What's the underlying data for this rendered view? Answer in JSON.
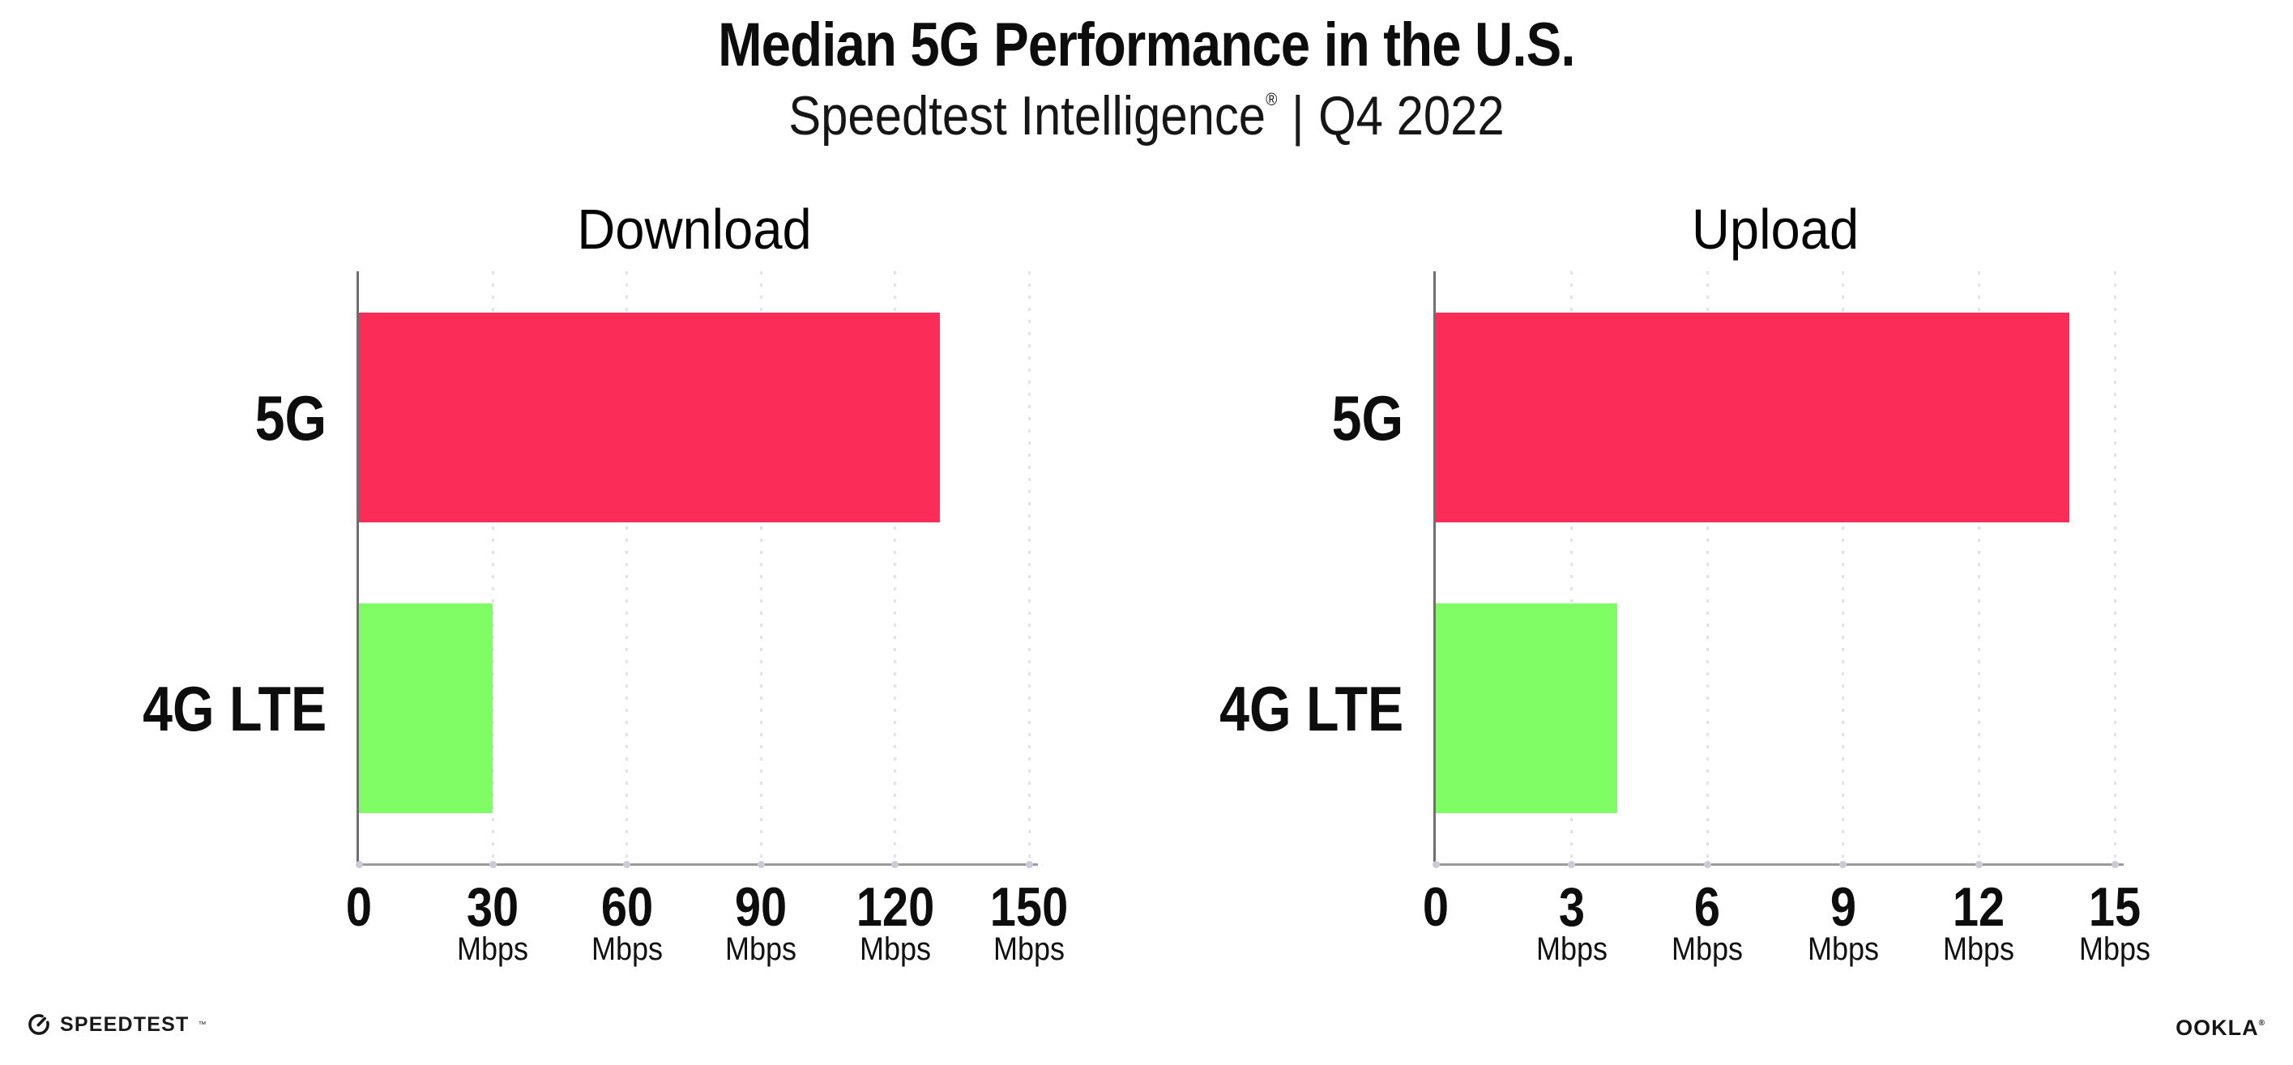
{
  "page": {
    "title": "Median 5G Performance in the U.S.",
    "subtitle": {
      "brand": "Speedtest Intelligence",
      "registered": "®",
      "separator": "|",
      "period": "Q4 2022"
    }
  },
  "footer": {
    "speedtest_wordmark": "SPEEDTEST",
    "speedtest_trademark": "™",
    "ookla_wordmark": "OOKLA",
    "ookla_registered": "®"
  },
  "colors": {
    "bar_5g": "#FB2D58",
    "bar_4g_lte": "#80FC64",
    "x_axis_line": "#9B9B9B",
    "y_axis_line": "#6F6F6F",
    "gridline": "#E1E2EC",
    "tick_dot": "#C9CBDC",
    "text": "#0D0D0D",
    "background": "#FFFFFF"
  },
  "chart_data": [
    {
      "type": "bar",
      "orientation": "horizontal",
      "title": "Download",
      "categories": [
        "5G",
        "4G LTE"
      ],
      "values": [
        130,
        30
      ],
      "unit": "Mbps",
      "xlim": [
        0,
        150
      ],
      "xticks": [
        0,
        30,
        60,
        90,
        120,
        150
      ],
      "tick_unit": "Mbps",
      "grid": "vertical-dotted",
      "legend": "none",
      "bar_colors": [
        "#FB2D58",
        "#80FC64"
      ]
    },
    {
      "type": "bar",
      "orientation": "horizontal",
      "title": "Upload",
      "categories": [
        "5G",
        "4G LTE"
      ],
      "values": [
        14,
        4
      ],
      "unit": "Mbps",
      "xlim": [
        0,
        15
      ],
      "xticks": [
        0,
        3,
        6,
        9,
        12,
        15
      ],
      "tick_unit": "Mbps",
      "grid": "vertical-dotted",
      "legend": "none",
      "bar_colors": [
        "#FB2D58",
        "#80FC64"
      ]
    }
  ]
}
